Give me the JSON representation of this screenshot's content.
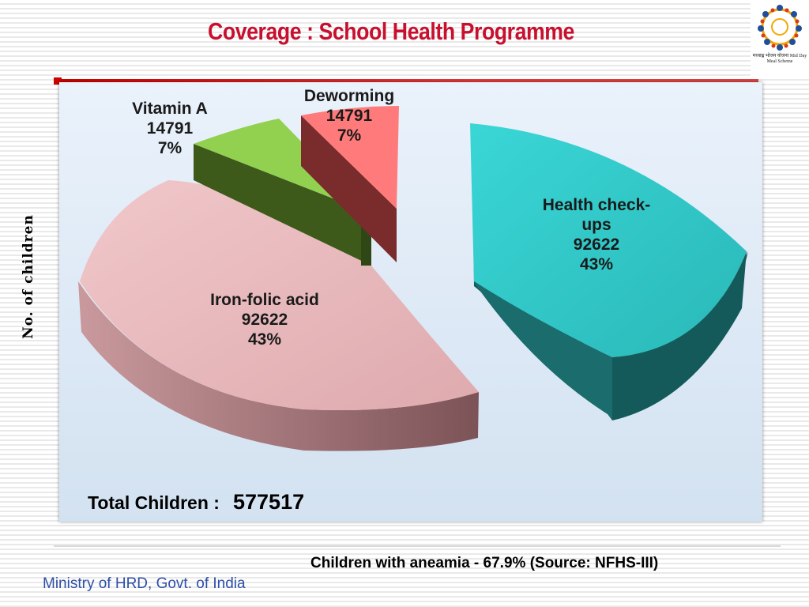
{
  "slide": {
    "title": "Coverage : School Health Programme",
    "note": "Children with aneamia - 67.9% (Source: NFHS-III)",
    "footer": "Ministry of HRD, Govt. of India",
    "logo_text": "मध्याह्न भोजन योजना Mid Day Meal Scheme"
  },
  "chart_data": {
    "type": "pie",
    "title": "",
    "ylabel": "No. of children",
    "total_label": "Total Children :",
    "total_value": "577517",
    "slices": [
      {
        "name": "Health check-ups",
        "label_lines": [
          "Health check-",
          "ups"
        ],
        "value": 92622,
        "percent": "43%",
        "color": "#33c9c9",
        "side": "#145a5a"
      },
      {
        "name": "Iron-folic acid",
        "label_lines": [
          "Iron-folic acid"
        ],
        "value": 92622,
        "percent": "43%",
        "color": "#eab8bb",
        "side": "#9b6b6f"
      },
      {
        "name": "Vitamin A",
        "label_lines": [
          "Vitamin A"
        ],
        "value": 14791,
        "percent": "7%",
        "color": "#92d050",
        "side": "#3d5a1a"
      },
      {
        "name": "Deworming",
        "label_lines": [
          "Deworming"
        ],
        "value": 14791,
        "percent": "7%",
        "color": "#ff7b7b",
        "side": "#7a2b2b"
      }
    ]
  }
}
